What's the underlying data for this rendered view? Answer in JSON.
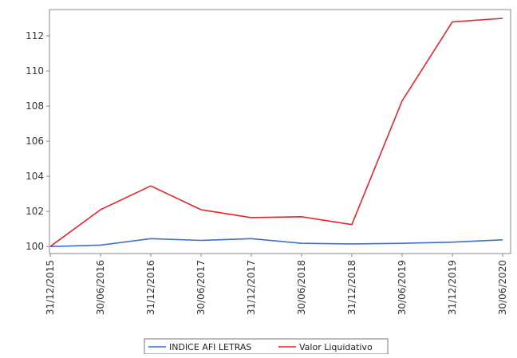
{
  "chart_data": {
    "type": "line",
    "title": "",
    "xlabel": "",
    "ylabel": "",
    "categories": [
      "31/12/2015",
      "30/06/2016",
      "31/12/2016",
      "30/06/2017",
      "31/12/2017",
      "30/06/2018",
      "31/12/2018",
      "30/06/2019",
      "31/12/2019",
      "30/06/2020"
    ],
    "ylim": [
      99.6,
      113.5
    ],
    "yticks": [
      100,
      102,
      104,
      106,
      108,
      110,
      112
    ],
    "grid": false,
    "legend_position": "bottom",
    "series": [
      {
        "name": "INDICE AFI LETRAS",
        "color": "#3a6fd8",
        "values": [
          100.0,
          100.08,
          100.45,
          100.35,
          100.45,
          100.18,
          100.15,
          100.18,
          100.25,
          100.38
        ]
      },
      {
        "name": "Valor Liquidativo",
        "color": "#e8242b",
        "values": [
          100.0,
          102.1,
          103.45,
          102.1,
          101.65,
          101.7,
          101.25,
          108.3,
          112.8,
          113.0
        ]
      }
    ]
  }
}
